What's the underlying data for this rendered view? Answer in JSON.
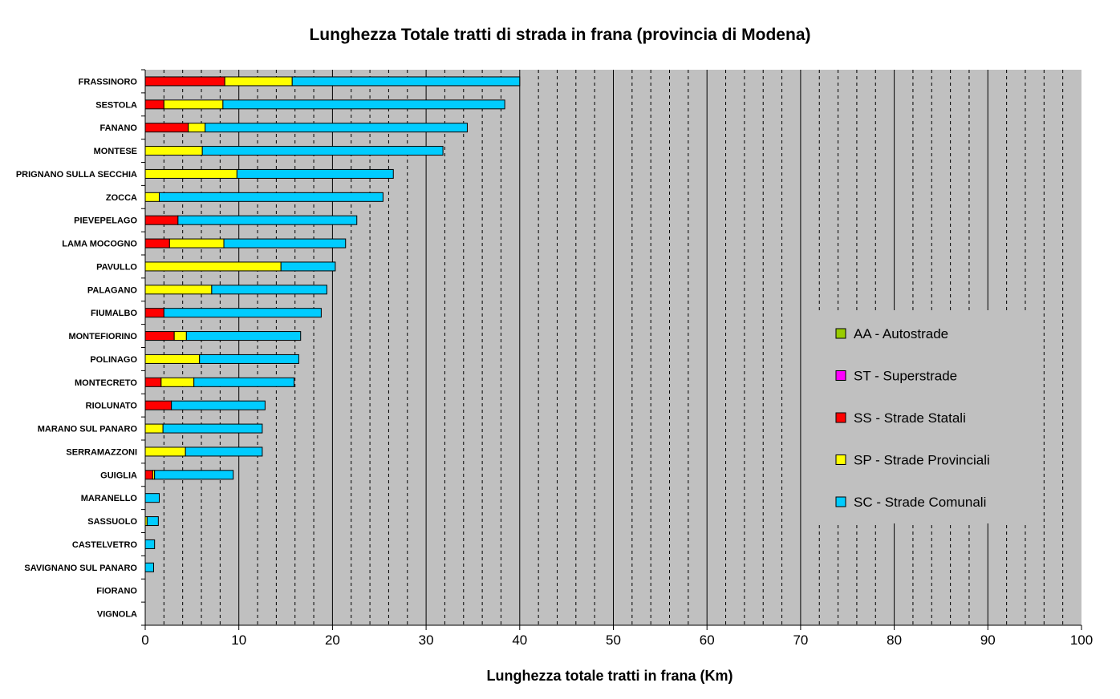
{
  "chart_data": {
    "type": "bar",
    "orientation": "horizontal",
    "stacked": true,
    "title": "Lunghezza Totale tratti di strada in frana (provincia di Modena)",
    "xlabel": "Lunghezza totale tratti in frana (Km)",
    "ylabel": "",
    "xlim": [
      0,
      100
    ],
    "xticks": [
      0,
      10,
      20,
      30,
      40,
      50,
      60,
      70,
      80,
      90,
      100
    ],
    "minor_grid_step": 2,
    "categories": [
      "FRASSINORO",
      "SESTOLA",
      "FANANO",
      "MONTESE",
      "PRIGNANO SULLA SECCHIA",
      "ZOCCA",
      "PIEVEPELAGO",
      "LAMA MOCOGNO",
      "PAVULLO",
      "PALAGANO",
      "FIUMALBO",
      "MONTEFIORINO",
      "POLINAGO",
      "MONTECRETO",
      "RIOLUNATO",
      "MARANO SUL PANARO",
      "SERRAMAZZONI",
      "GUIGLIA",
      "MARANELLO",
      "SASSUOLO",
      "CASTELVETRO",
      "SAVIGNANO SUL PANARO",
      "FIORANO",
      "VIGNOLA"
    ],
    "series": [
      {
        "name": "AA - Autostrade",
        "color": "#99cc00",
        "values": [
          0,
          0,
          0,
          0,
          0,
          0,
          0,
          0,
          0,
          0,
          0,
          0,
          0,
          0,
          0,
          0,
          0,
          0,
          0,
          0,
          0,
          0,
          0,
          0
        ]
      },
      {
        "name": "ST - Superstrade",
        "color": "#ff00ff",
        "values": [
          0,
          0,
          0,
          0,
          0,
          0,
          0,
          0,
          0,
          0,
          0,
          0,
          0,
          0,
          0,
          0,
          0,
          0,
          0,
          0,
          0,
          0,
          0,
          0
        ]
      },
      {
        "name": "SS - Strade Statali",
        "color": "#ff0000",
        "values": [
          8.5,
          2.0,
          4.6,
          0,
          0,
          0,
          3.5,
          2.6,
          0,
          0,
          2.0,
          3.1,
          0,
          1.7,
          2.8,
          0,
          0,
          0.8,
          0,
          0,
          0,
          0,
          0,
          0
        ]
      },
      {
        "name": "SP - Strade Provinciali",
        "color": "#ffff00",
        "values": [
          7.2,
          6.3,
          1.8,
          6.1,
          9.8,
          1.5,
          0,
          5.8,
          14.5,
          7.1,
          0,
          1.3,
          5.8,
          3.5,
          0,
          1.9,
          4.3,
          0.2,
          0,
          0.2,
          0,
          0,
          0,
          0
        ]
      },
      {
        "name": "SC - Strade Comunali",
        "color": "#00ccff",
        "values": [
          24.3,
          30.1,
          28.0,
          25.7,
          16.7,
          23.9,
          19.1,
          13.0,
          5.8,
          12.3,
          16.8,
          12.2,
          10.6,
          10.7,
          10.0,
          10.6,
          8.2,
          8.4,
          1.5,
          1.2,
          1.0,
          0.9,
          0,
          0
        ]
      }
    ],
    "legend": {
      "position": "right"
    },
    "colors": {
      "plot_background": "#c0c0c0",
      "page_background": "#ffffff",
      "grid": "#000000"
    }
  }
}
